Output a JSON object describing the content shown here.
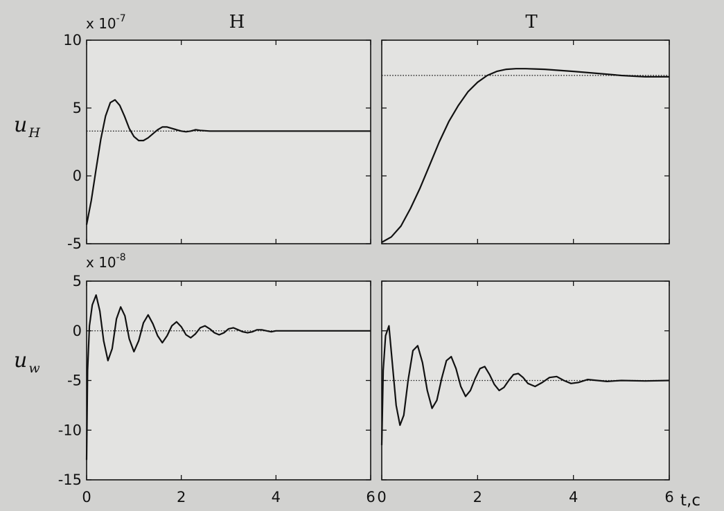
{
  "chart_data": [
    {
      "id": "uH_H",
      "type": "line",
      "column_title": "H",
      "ylabel": "u",
      "ylabel_sub": "H",
      "scale_label": "x 10",
      "scale_exp": "-7",
      "xlim": [
        0,
        6
      ],
      "ylim": [
        -5,
        10
      ],
      "yticks": [
        -5,
        0,
        5,
        10
      ],
      "ytick_labels": [
        "-5",
        "0",
        "5",
        "10"
      ],
      "xticks": [
        0,
        2,
        4,
        6
      ],
      "reference_level": 3.3,
      "series": [
        {
          "x": [
            0,
            0.1,
            0.2,
            0.3,
            0.4,
            0.5,
            0.6,
            0.7,
            0.8,
            0.9,
            1.0,
            1.1,
            1.2,
            1.3,
            1.4,
            1.5,
            1.6,
            1.7,
            1.8,
            1.9,
            2.0,
            2.1,
            2.2,
            2.3,
            2.4,
            2.6,
            2.8,
            3.0,
            3.5,
            4.0,
            4.5,
            5.0,
            5.5,
            6.0
          ],
          "y": [
            -3.6,
            -1.8,
            0.5,
            2.7,
            4.4,
            5.4,
            5.6,
            5.2,
            4.4,
            3.5,
            2.9,
            2.6,
            2.6,
            2.8,
            3.1,
            3.4,
            3.6,
            3.6,
            3.5,
            3.4,
            3.3,
            3.25,
            3.3,
            3.4,
            3.35,
            3.3,
            3.3,
            3.3,
            3.3,
            3.3,
            3.3,
            3.3,
            3.3,
            3.3
          ]
        }
      ]
    },
    {
      "id": "uH_T",
      "type": "line",
      "column_title": "T",
      "xlim": [
        0,
        6
      ],
      "ylim": [
        -5,
        10
      ],
      "yticks": [
        -5,
        0,
        5,
        10
      ],
      "xticks": [
        0,
        2,
        4,
        6
      ],
      "reference_level": 7.4,
      "series": [
        {
          "x": [
            0,
            0.2,
            0.4,
            0.6,
            0.8,
            1.0,
            1.2,
            1.4,
            1.6,
            1.8,
            2.0,
            2.2,
            2.4,
            2.6,
            2.8,
            3.0,
            3.2,
            3.4,
            3.6,
            3.8,
            4.0,
            4.5,
            5.0,
            5.5,
            6.0
          ],
          "y": [
            -4.9,
            -4.5,
            -3.7,
            -2.4,
            -0.9,
            0.8,
            2.5,
            4.0,
            5.2,
            6.2,
            6.9,
            7.4,
            7.7,
            7.85,
            7.9,
            7.9,
            7.88,
            7.85,
            7.8,
            7.75,
            7.7,
            7.55,
            7.4,
            7.3,
            7.3
          ]
        }
      ]
    },
    {
      "id": "uw_H",
      "type": "line",
      "ylabel": "u",
      "ylabel_sub": "w",
      "scale_label": "x 10",
      "scale_exp": "-8",
      "xlim": [
        0,
        6
      ],
      "ylim": [
        -15,
        5
      ],
      "yticks": [
        -15,
        -10,
        -5,
        0,
        5
      ],
      "ytick_labels": [
        "-15",
        "-10",
        "-5",
        "0",
        "5"
      ],
      "xticks": [
        0,
        2,
        4,
        6
      ],
      "xtick_labels": [
        "0",
        "2",
        "4",
        "6"
      ],
      "reference_level": 0,
      "series": [
        {
          "x": [
            0,
            0.02,
            0.06,
            0.12,
            0.2,
            0.28,
            0.36,
            0.45,
            0.54,
            0.63,
            0.72,
            0.81,
            0.9,
            1.0,
            1.1,
            1.2,
            1.3,
            1.4,
            1.5,
            1.6,
            1.7,
            1.8,
            1.9,
            2.0,
            2.1,
            2.2,
            2.3,
            2.4,
            2.5,
            2.6,
            2.7,
            2.8,
            2.9,
            3.0,
            3.1,
            3.2,
            3.3,
            3.4,
            3.5,
            3.6,
            3.7,
            3.8,
            3.9,
            4.0,
            4.2,
            4.4,
            4.6,
            4.8,
            5.0,
            5.5,
            6.0
          ],
          "y": [
            -13,
            -4,
            0.5,
            2.6,
            3.6,
            2.0,
            -1.0,
            -3.0,
            -1.8,
            1.2,
            2.4,
            1.5,
            -0.8,
            -2.1,
            -1.0,
            0.8,
            1.6,
            0.7,
            -0.5,
            -1.2,
            -0.5,
            0.5,
            0.9,
            0.4,
            -0.4,
            -0.7,
            -0.3,
            0.3,
            0.5,
            0.2,
            -0.2,
            -0.4,
            -0.2,
            0.2,
            0.3,
            0.1,
            -0.1,
            -0.2,
            -0.1,
            0.1,
            0.1,
            0.0,
            -0.1,
            0.0,
            0.0,
            0.0,
            0.0,
            0.0,
            0.0,
            0.0,
            0.0
          ]
        }
      ]
    },
    {
      "id": "uw_T",
      "type": "line",
      "xlim": [
        0,
        6
      ],
      "ylim": [
        -15,
        5
      ],
      "yticks": [
        -15,
        -10,
        -5,
        0,
        5
      ],
      "xticks": [
        0,
        2,
        4,
        6
      ],
      "xtick_labels": [
        "0",
        "2",
        "4",
        "6"
      ],
      "reference_level": -5,
      "series": [
        {
          "x": [
            0,
            0.03,
            0.08,
            0.15,
            0.22,
            0.3,
            0.38,
            0.46,
            0.55,
            0.65,
            0.75,
            0.85,
            0.95,
            1.05,
            1.15,
            1.25,
            1.35,
            1.45,
            1.55,
            1.65,
            1.75,
            1.85,
            1.95,
            2.05,
            2.15,
            2.25,
            2.35,
            2.45,
            2.55,
            2.65,
            2.75,
            2.85,
            2.95,
            3.05,
            3.2,
            3.35,
            3.5,
            3.65,
            3.8,
            3.95,
            4.1,
            4.3,
            4.5,
            4.7,
            5.0,
            5.5,
            6.0
          ],
          "y": [
            -11.5,
            -4,
            -0.5,
            0.5,
            -3.2,
            -7.5,
            -9.5,
            -8.5,
            -5.0,
            -2.0,
            -1.5,
            -3.2,
            -6.0,
            -7.8,
            -7.0,
            -4.8,
            -3.0,
            -2.6,
            -3.8,
            -5.6,
            -6.6,
            -6.0,
            -4.8,
            -3.8,
            -3.6,
            -4.4,
            -5.4,
            -6.0,
            -5.7,
            -5.0,
            -4.4,
            -4.3,
            -4.7,
            -5.3,
            -5.6,
            -5.2,
            -4.7,
            -4.6,
            -5.0,
            -5.3,
            -5.2,
            -4.9,
            -5.0,
            -5.1,
            -5.0,
            -5.05,
            -5.0
          ]
        }
      ]
    }
  ],
  "x_axis_unit": "t,c"
}
